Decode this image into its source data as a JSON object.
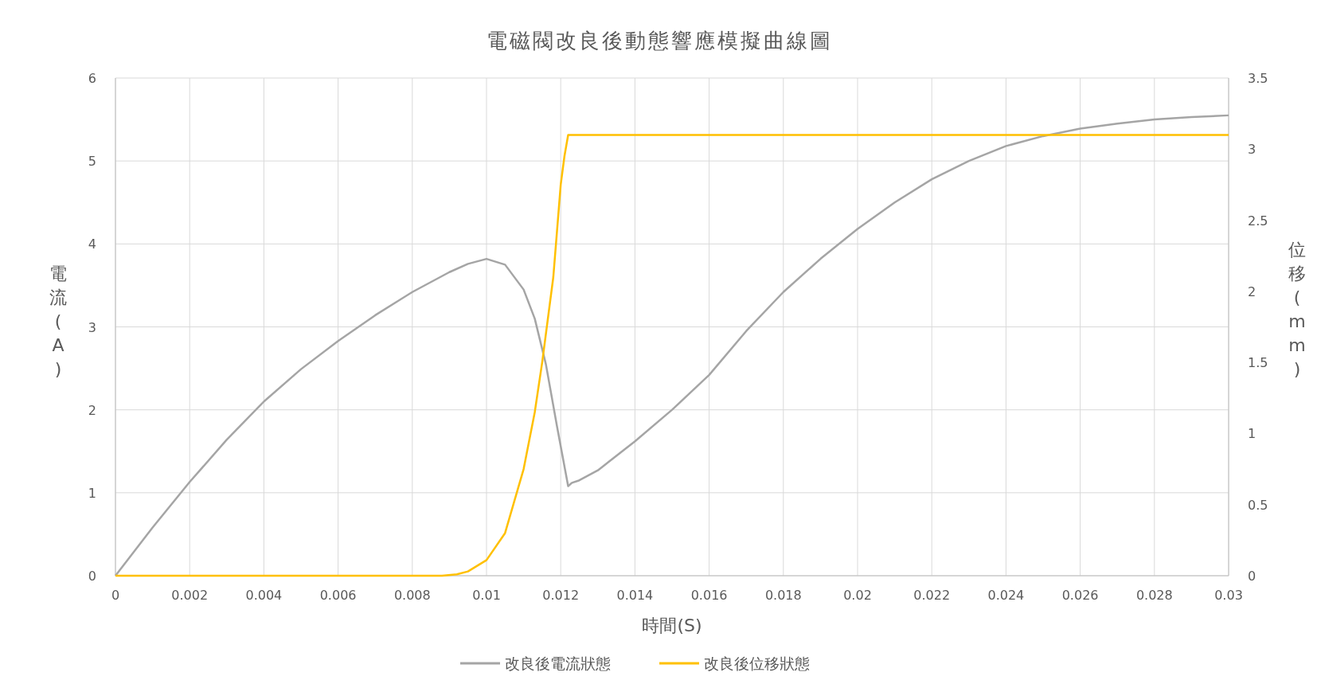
{
  "chart_data": {
    "type": "line",
    "title": "電磁閥改良後動態響應模擬曲線圖",
    "xlabel": "時間(S)",
    "ylabel": "電流(A)",
    "y2label": "位移(mm)",
    "xlim": [
      0,
      0.03
    ],
    "xticks": [
      0,
      0.002,
      0.004,
      0.006,
      0.008,
      0.01,
      0.012,
      0.014,
      0.016,
      0.018,
      0.02,
      0.022,
      0.024,
      0.026,
      0.028,
      0.03
    ],
    "ylim": [
      0,
      6
    ],
    "yticks": [
      0,
      1,
      2,
      3,
      4,
      5,
      6
    ],
    "y2lim": [
      0,
      3.5
    ],
    "y2ticks": [
      0,
      0.5,
      1,
      1.5,
      2,
      2.5,
      3,
      3.5
    ],
    "grid": true,
    "legend": "bottom",
    "series": [
      {
        "name": "改良後電流狀態",
        "color": "#a5a5a5",
        "x": [
          0,
          0.001,
          0.002,
          0.003,
          0.004,
          0.005,
          0.006,
          0.007,
          0.008,
          0.009,
          0.0095,
          0.01,
          0.0105,
          0.011,
          0.0113,
          0.0116,
          0.0119,
          0.0122,
          0.0123,
          0.0125,
          0.013,
          0.014,
          0.015,
          0.016,
          0.017,
          0.018,
          0.019,
          0.02,
          0.021,
          0.022,
          0.023,
          0.024,
          0.025,
          0.026,
          0.027,
          0.028,
          0.029,
          0.03
        ],
        "values": [
          0,
          0.58,
          1.13,
          1.64,
          2.1,
          2.49,
          2.83,
          3.14,
          3.42,
          3.66,
          3.76,
          3.82,
          3.75,
          3.45,
          3.1,
          2.55,
          1.8,
          1.08,
          1.12,
          1.15,
          1.27,
          1.62,
          2.0,
          2.42,
          2.95,
          3.42,
          3.82,
          4.18,
          4.5,
          4.78,
          5.0,
          5.18,
          5.3,
          5.39,
          5.45,
          5.5,
          5.53,
          5.55
        ]
      },
      {
        "name": "改良後位移狀態",
        "color": "#ffc000",
        "axis": "y2",
        "x": [
          0,
          0.0088,
          0.0092,
          0.0095,
          0.01,
          0.0105,
          0.011,
          0.0113,
          0.0115,
          0.0118,
          0.012,
          0.0121,
          0.0122,
          0.0125,
          0.03
        ],
        "values": [
          0,
          0,
          0.01,
          0.03,
          0.11,
          0.3,
          0.75,
          1.15,
          1.5,
          2.1,
          2.75,
          2.95,
          3.1,
          3.1,
          3.1
        ]
      }
    ]
  }
}
